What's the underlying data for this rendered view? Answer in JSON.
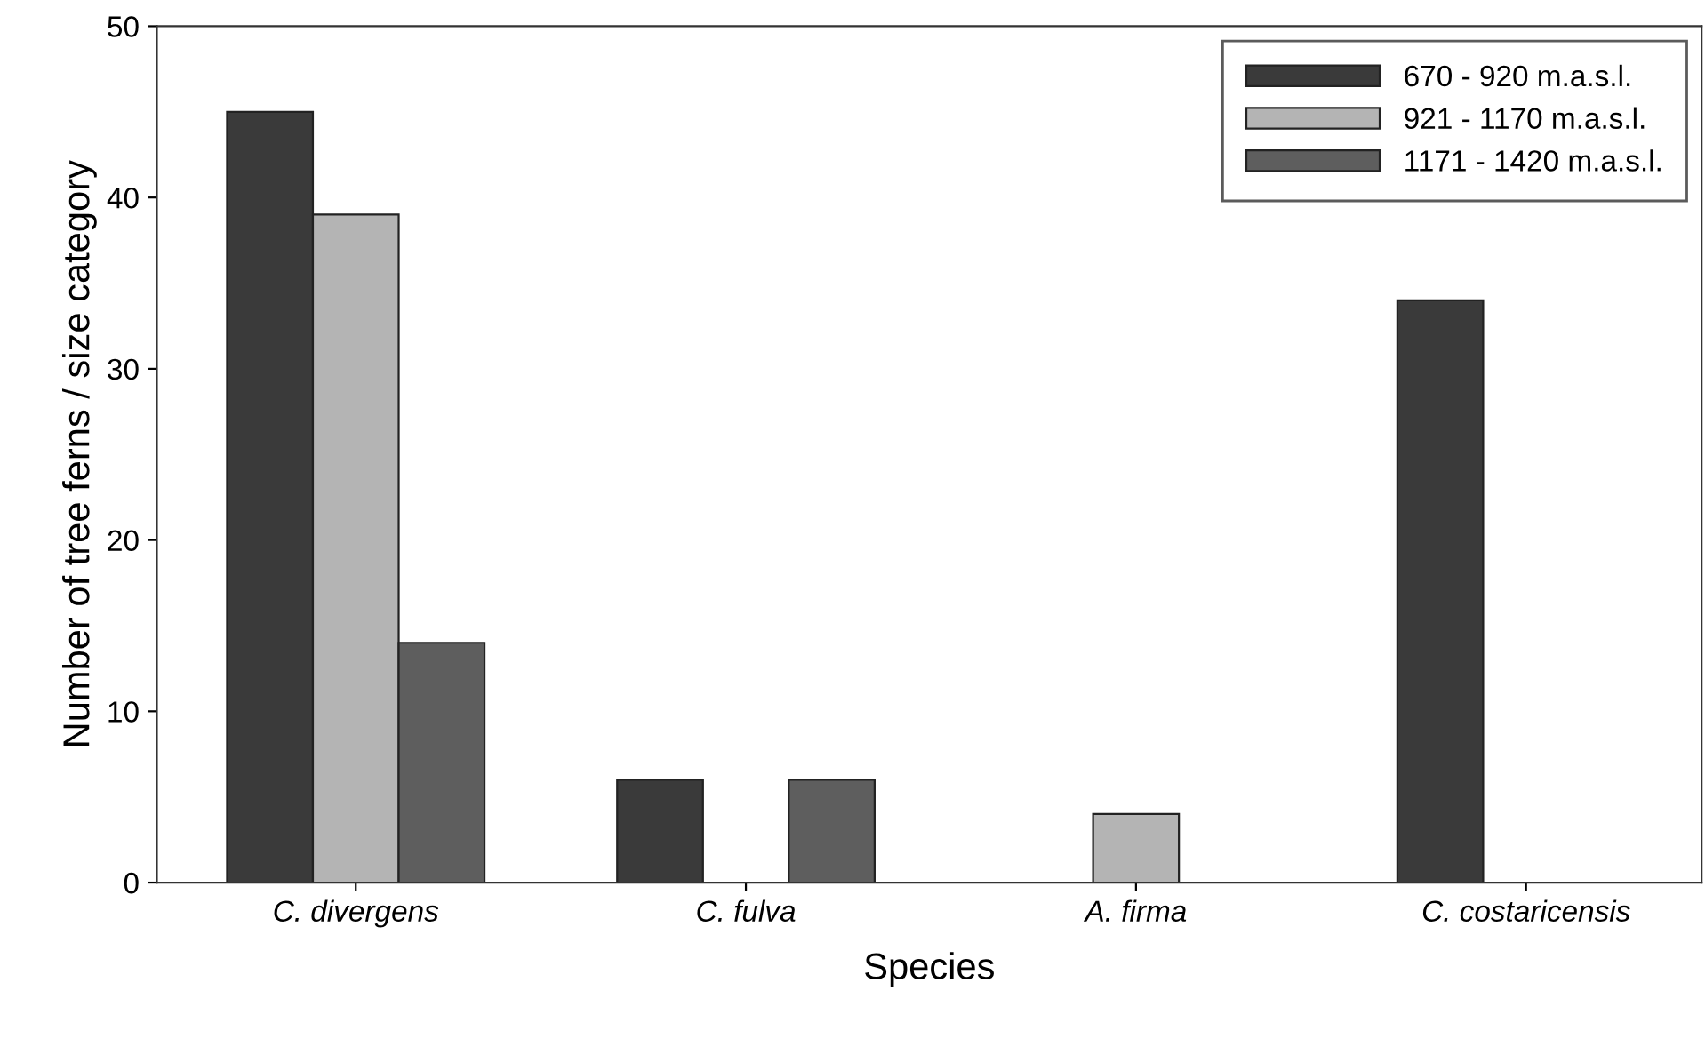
{
  "chart_data": {
    "type": "bar",
    "xlabel": "Species",
    "ylabel": "Number of tree ferns / size category",
    "categories": [
      "C. divergens",
      "C. fulva",
      "A. firma",
      "C. costaricensis"
    ],
    "series": [
      {
        "name": "670 - 920 m.a.s.l.",
        "color": "#3a3a3a",
        "values": [
          45,
          6,
          null,
          34
        ]
      },
      {
        "name": "921 - 1170 m.a.s.l.",
        "color": "#b4b4b4",
        "values": [
          39,
          null,
          4,
          null
        ]
      },
      {
        "name": "1171 - 1420 m.a.s.l.",
        "color": "#5e5e5e",
        "values": [
          14,
          6,
          null,
          null
        ]
      }
    ],
    "ylim": [
      0,
      50
    ],
    "yticks": [
      0,
      10,
      20,
      30,
      40,
      50
    ],
    "grid": false,
    "legend": "top right"
  }
}
